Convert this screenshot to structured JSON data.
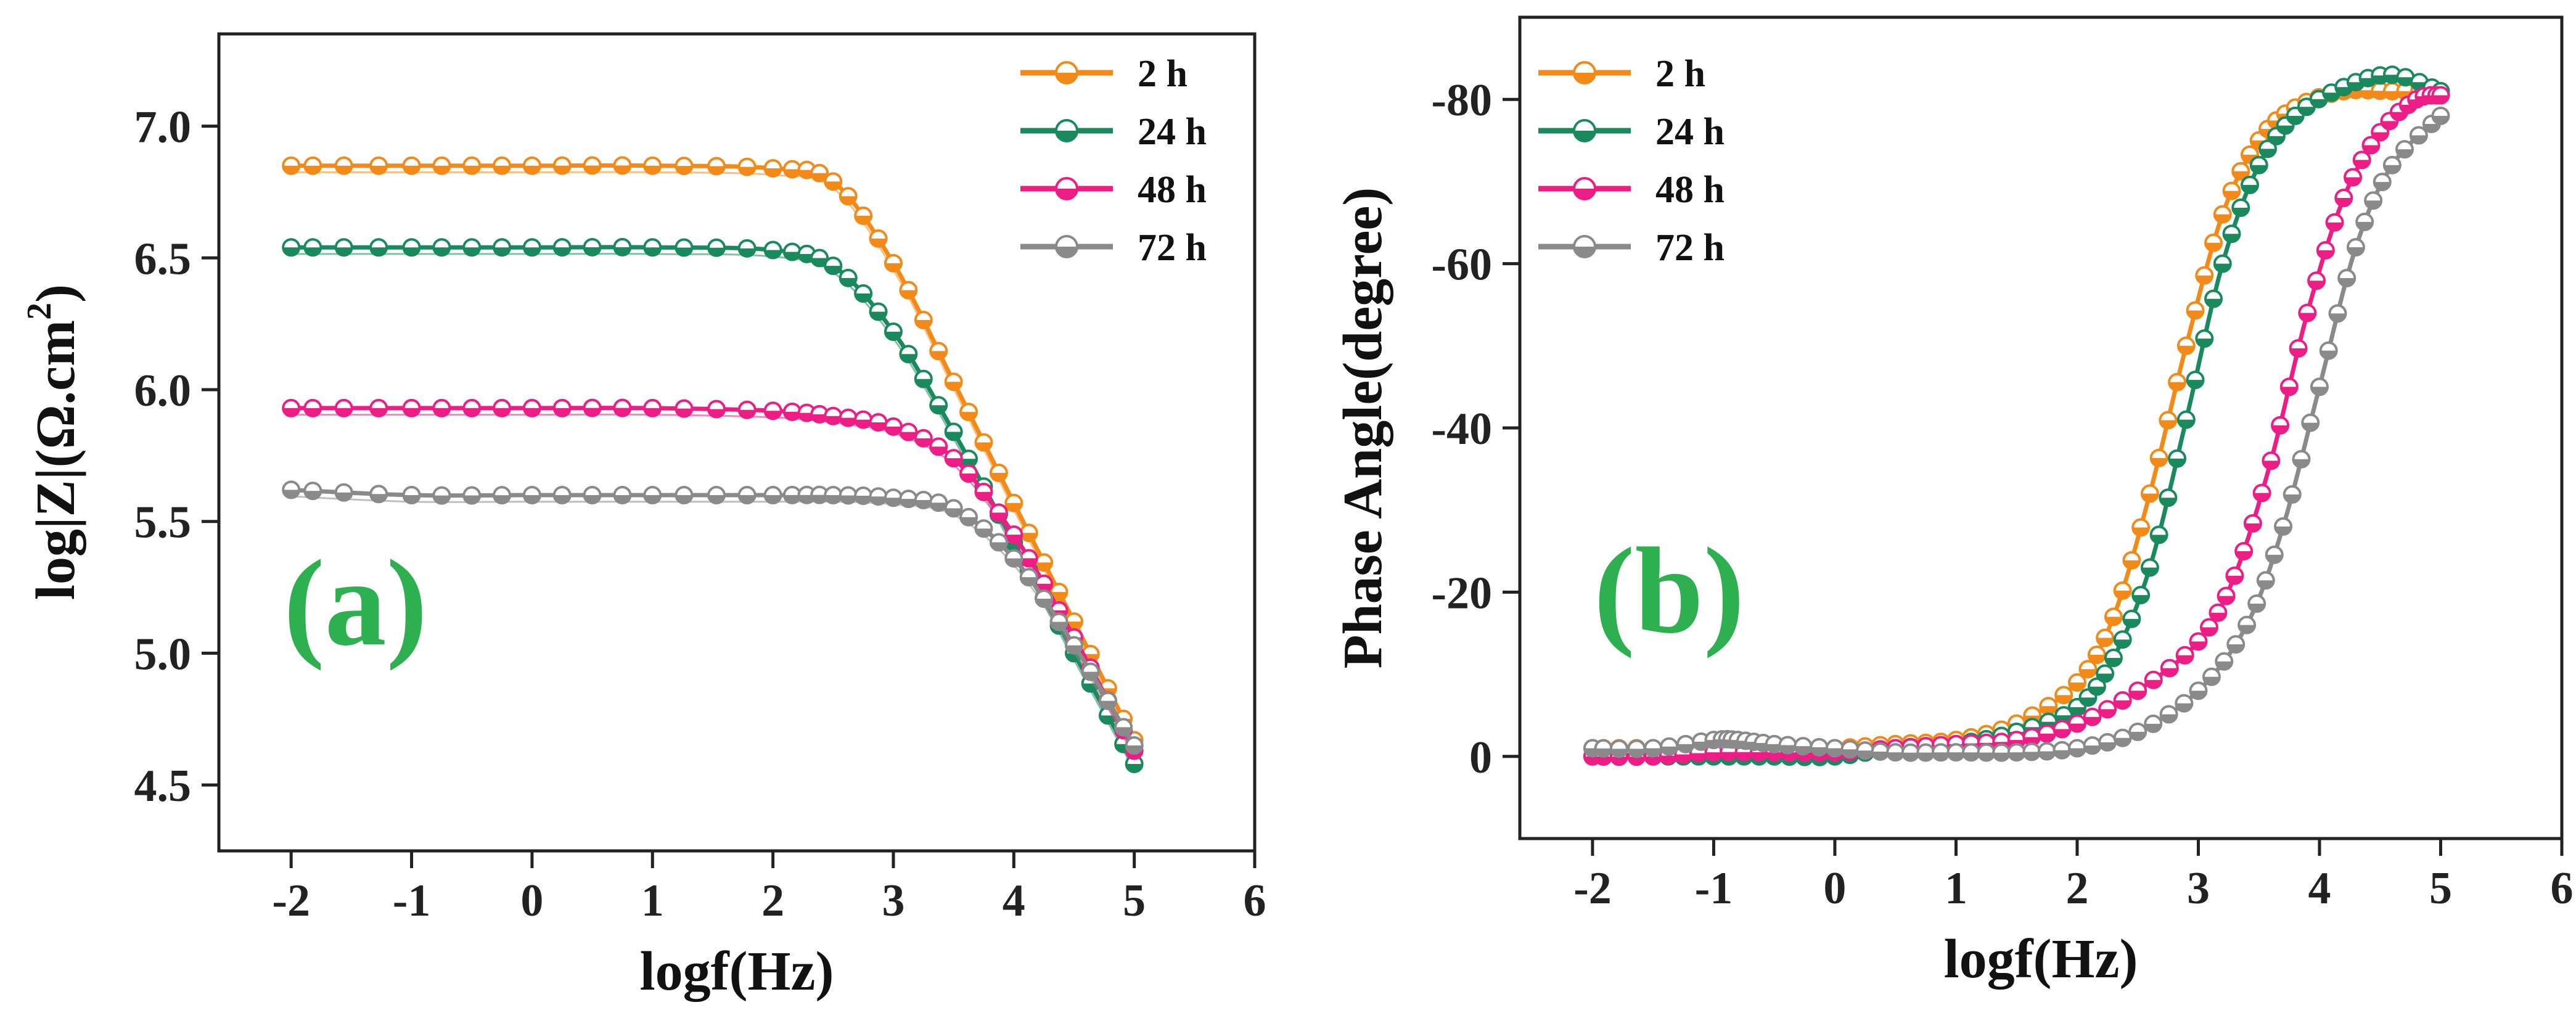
{
  "colors": {
    "orange": "#f28a1a",
    "green": "#1a8a5e",
    "pink": "#ec1e86",
    "gray": "#8a8a8a",
    "panel_label": "#2fb050"
  },
  "chart_data": [
    {
      "type": "line",
      "panel_label": "(a)",
      "xlabel": "logf(Hz)",
      "ylabel_main": "log|Z|(Ω.cm",
      "ylabel_sup": "2",
      "ylabel_close": ")",
      "xlim": [
        -2.6,
        6
      ],
      "ylim": [
        4.25,
        7.35
      ],
      "xticks": [
        -2,
        -1,
        0,
        1,
        2,
        3,
        4,
        5,
        6
      ],
      "yticks": [
        4.5,
        5.0,
        5.5,
        6.0,
        6.5,
        7.0
      ],
      "ytick_labels": [
        "4.5",
        "5.0",
        "5.5",
        "6.0",
        "6.5",
        "7.0"
      ],
      "legend_position": "top-right",
      "series": [
        {
          "name": "2 h",
          "color": "orange",
          "x": [
            -2,
            -1,
            0,
            1,
            2,
            2.5,
            3,
            3.5,
            4,
            4.5,
            5
          ],
          "y": [
            6.85,
            6.85,
            6.85,
            6.85,
            6.84,
            6.79,
            6.48,
            6.03,
            5.57,
            5.12,
            4.67
          ]
        },
        {
          "name": "24 h",
          "color": "green",
          "x": [
            -2,
            -1,
            0,
            1,
            2,
            2.5,
            3,
            3.5,
            4,
            4.5,
            5
          ],
          "y": [
            6.54,
            6.54,
            6.54,
            6.54,
            6.53,
            6.47,
            6.22,
            5.84,
            5.42,
            5.0,
            4.58
          ]
        },
        {
          "name": "48 h",
          "color": "pink",
          "x": [
            -2,
            -1,
            0,
            1,
            2,
            2.5,
            3,
            3.5,
            4,
            4.5,
            5
          ],
          "y": [
            5.93,
            5.93,
            5.93,
            5.93,
            5.92,
            5.9,
            5.86,
            5.74,
            5.45,
            5.06,
            4.63
          ]
        },
        {
          "name": "72 h",
          "color": "gray",
          "x": [
            -2,
            -1,
            0,
            1,
            2,
            2.5,
            3,
            3.5,
            4,
            4.5,
            5
          ],
          "y": [
            5.62,
            5.6,
            5.6,
            5.6,
            5.6,
            5.6,
            5.59,
            5.55,
            5.36,
            5.03,
            4.65
          ]
        }
      ]
    },
    {
      "type": "line",
      "panel_label": "(b)",
      "xlabel": "logf(Hz)",
      "ylabel": "Phase Angle(degree)",
      "xlim": [
        -2.6,
        6
      ],
      "ylim": [
        10,
        -90
      ],
      "xticks": [
        -2,
        -1,
        0,
        1,
        2,
        3,
        4,
        5,
        6
      ],
      "yticks": [
        0,
        -20,
        -40,
        -60,
        -80
      ],
      "legend_position": "top-left",
      "series": [
        {
          "name": "2 h",
          "color": "orange",
          "x": [
            -2,
            -1.5,
            -1,
            -0.5,
            0,
            0.5,
            1,
            1.5,
            2,
            2.3,
            2.6,
            2.9,
            3.2,
            3.5,
            3.8,
            4.2,
            4.6,
            5
          ],
          "y": [
            -1,
            -1,
            -1,
            -1,
            -1,
            -1.5,
            -2,
            -4,
            -9,
            -17,
            -32,
            -50,
            -66,
            -75,
            -79,
            -81,
            -81,
            -81
          ]
        },
        {
          "name": "24 h",
          "color": "green",
          "x": [
            -2,
            -1.5,
            -1,
            -0.5,
            0,
            0.5,
            1,
            1.5,
            2,
            2.3,
            2.6,
            2.9,
            3.2,
            3.5,
            3.8,
            4.2,
            4.6,
            5
          ],
          "y": [
            0,
            0,
            0,
            0,
            0,
            -1,
            -1.5,
            -3,
            -6,
            -12,
            -23,
            -41,
            -60,
            -72,
            -78,
            -81.5,
            -83,
            -81
          ]
        },
        {
          "name": "48 h",
          "color": "pink",
          "x": [
            -2,
            -1.5,
            -1,
            -0.5,
            0,
            0.5,
            1,
            1.5,
            2,
            2.5,
            3,
            3.3,
            3.6,
            3.9,
            4.2,
            4.5,
            4.8,
            5
          ],
          "y": [
            0,
            0,
            -0.5,
            -0.5,
            -0.5,
            -1,
            -1.5,
            -2,
            -4,
            -8,
            -14,
            -22,
            -36,
            -54,
            -68,
            -76,
            -80,
            -80.5
          ]
        },
        {
          "name": "72 h",
          "color": "gray",
          "x": [
            -2,
            -1.5,
            -1,
            -0.8,
            -0.5,
            0,
            0.5,
            1,
            1.5,
            2,
            2.5,
            3,
            3.4,
            3.7,
            4,
            4.3,
            4.6,
            5
          ],
          "y": [
            -1,
            -1,
            -2,
            -2,
            -1.5,
            -1,
            -0.5,
            -0.5,
            -0.5,
            -1,
            -3,
            -8,
            -16,
            -28,
            -45,
            -62,
            -72,
            -78
          ]
        }
      ]
    }
  ]
}
